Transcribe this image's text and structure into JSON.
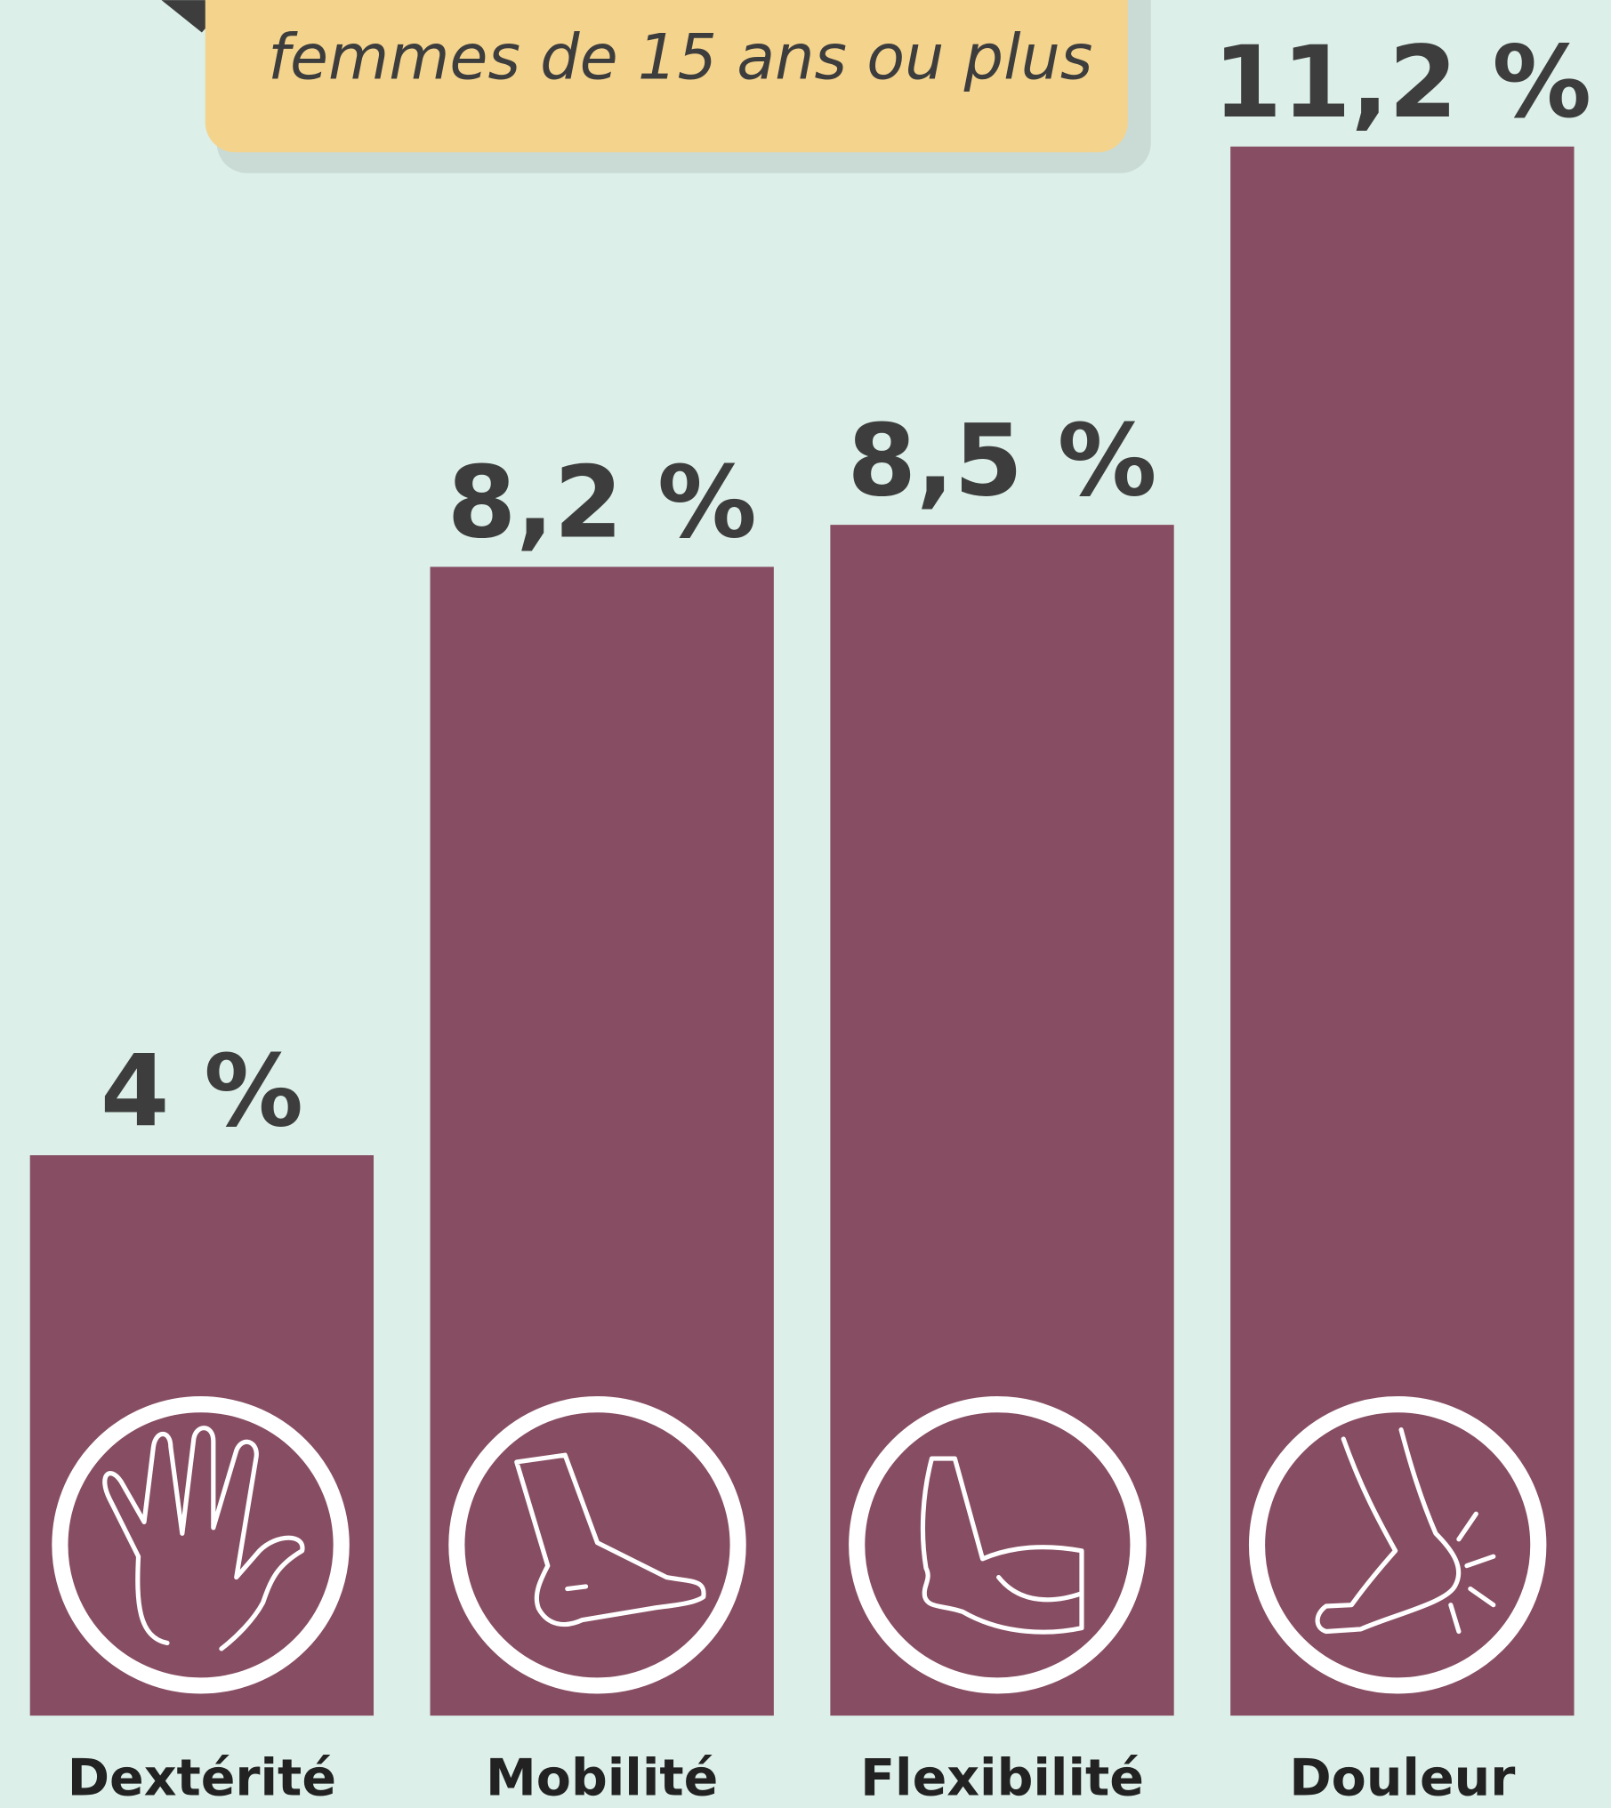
{
  "chart_data": {
    "type": "bar",
    "subtitle": "femmes de 15 ans ou plus",
    "categories": [
      "Dextérité",
      "Mobilité",
      "Flexibilité",
      "Douleur"
    ],
    "values": [
      4,
      8.2,
      8.5,
      11.2
    ],
    "value_labels": [
      "4 %",
      "8,2 %",
      "8,5 %",
      "11,2 %"
    ],
    "color": "#874d62",
    "ylim": [
      0,
      11.2
    ]
  }
}
